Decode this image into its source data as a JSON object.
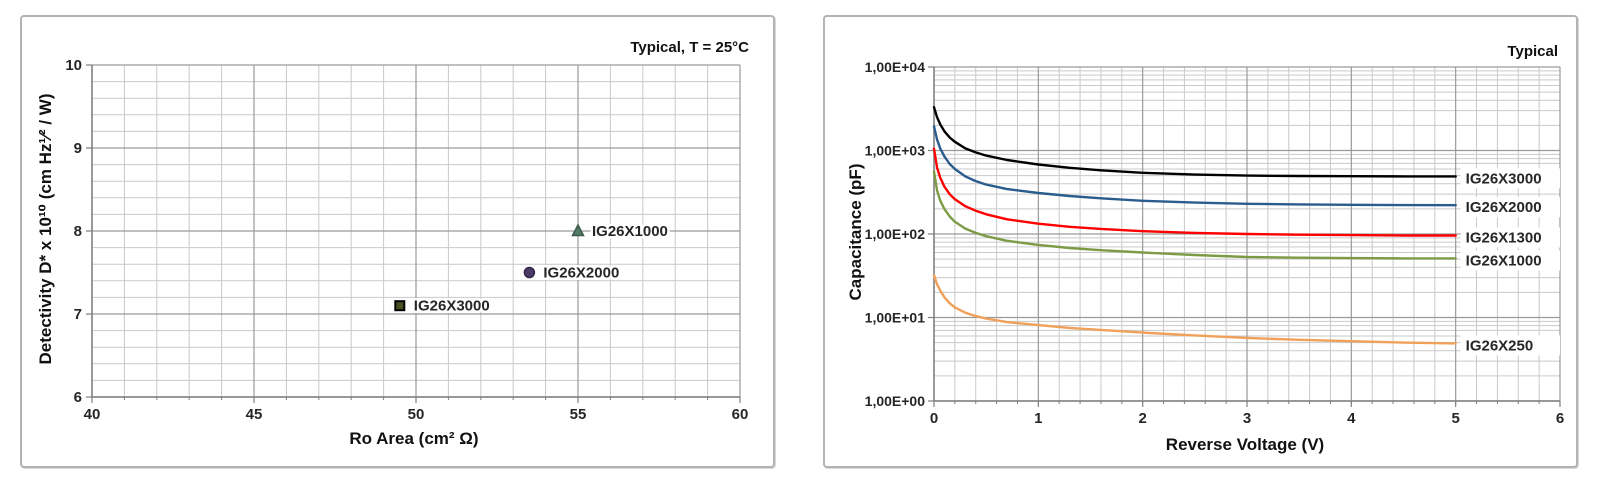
{
  "page": {
    "background": "#ffffff",
    "panel_border_color": "#b3b3b3"
  },
  "chart_data": [
    {
      "type": "scatter",
      "note": "Typical, T = 25°C",
      "xlabel": "Ro Area (cm² Ω)",
      "ylabel": "Detectivity D* x 10¹⁰  (cm Hz¹⁄² / W)",
      "x_axis": {
        "min": 40,
        "max": 60,
        "major_step": 5,
        "minor_step": 1,
        "tick_labels": [
          "40",
          "45",
          "50",
          "55",
          "60"
        ]
      },
      "y_axis": {
        "min": 6,
        "max": 10,
        "major_step": 1,
        "minor_step": 0.2,
        "tick_labels": [
          "6",
          "7",
          "8",
          "9",
          "10"
        ]
      },
      "grid": {
        "minor_color": "#c9c9c9",
        "major_color": "#9a9a9a",
        "axis_color": "#7f7f7f",
        "on": true
      },
      "points": [
        {
          "label": "IG26X3000",
          "x": 49.5,
          "y": 7.1,
          "marker": "square",
          "fill": "#44501e",
          "stroke": "#000000",
          "label_color": "#111111"
        },
        {
          "label": "IG26X2000",
          "x": 53.5,
          "y": 7.5,
          "marker": "circle",
          "fill": "#4a3a66",
          "stroke": "#33254a",
          "label_color": "#1f3864"
        },
        {
          "label": "IG26X1000",
          "x": 55,
          "y": 8,
          "marker": "triangle",
          "fill": "#527a66",
          "stroke": "#3c5a49",
          "label_color": "#7d9b44"
        }
      ]
    },
    {
      "type": "line",
      "note": "Typical",
      "xlabel": "Reverse Voltage (V)",
      "ylabel": "Capacitance (pF)",
      "x_axis": {
        "min": 0,
        "max": 6,
        "major_step": 1,
        "minor_step": 0.2,
        "tick_labels": [
          "0",
          "1",
          "2",
          "3",
          "4",
          "5",
          "6"
        ]
      },
      "y_axis": {
        "scale": "log",
        "min_exp": 0,
        "max_exp": 4,
        "tick_labels": [
          "1,00E+00",
          "1,00E+01",
          "1,00E+02",
          "1,00E+03",
          "1,00E+04"
        ]
      },
      "grid": {
        "minor_color": "#c9c9c9",
        "major_color": "#9a9a9a",
        "axis_color": "#7f7f7f",
        "on": true
      },
      "series": [
        {
          "name": "IG26X3000",
          "color": "#000000",
          "points": [
            [
              0,
              3300
            ],
            [
              0.03,
              2500
            ],
            [
              0.06,
              2050
            ],
            [
              0.1,
              1700
            ],
            [
              0.15,
              1430
            ],
            [
              0.2,
              1270
            ],
            [
              0.3,
              1060
            ],
            [
              0.4,
              950
            ],
            [
              0.5,
              870
            ],
            [
              0.7,
              770
            ],
            [
              1,
              680
            ],
            [
              1.3,
              620
            ],
            [
              1.6,
              580
            ],
            [
              2,
              540
            ],
            [
              2.5,
              515
            ],
            [
              3,
              500
            ],
            [
              3.5,
              495
            ],
            [
              4,
              492
            ],
            [
              4.5,
              490
            ],
            [
              5,
              490
            ]
          ]
        },
        {
          "name": "IG26X2000",
          "color": "#2b5c8e",
          "points": [
            [
              0,
              1950
            ],
            [
              0.03,
              1350
            ],
            [
              0.06,
              1050
            ],
            [
              0.1,
              850
            ],
            [
              0.15,
              690
            ],
            [
              0.2,
              600
            ],
            [
              0.3,
              490
            ],
            [
              0.4,
              430
            ],
            [
              0.5,
              390
            ],
            [
              0.7,
              345
            ],
            [
              1,
              310
            ],
            [
              1.3,
              285
            ],
            [
              1.6,
              268
            ],
            [
              2,
              250
            ],
            [
              2.5,
              238
            ],
            [
              3,
              230
            ],
            [
              3.5,
              226
            ],
            [
              4,
              224
            ],
            [
              4.5,
              222
            ],
            [
              5,
              221
            ]
          ]
        },
        {
          "name": "IG26X1300",
          "color": "#fe0000",
          "points": [
            [
              0,
              1050
            ],
            [
              0.03,
              620
            ],
            [
              0.06,
              470
            ],
            [
              0.1,
              370
            ],
            [
              0.15,
              300
            ],
            [
              0.2,
              260
            ],
            [
              0.3,
              215
            ],
            [
              0.4,
              190
            ],
            [
              0.5,
              172
            ],
            [
              0.7,
              150
            ],
            [
              1,
              133
            ],
            [
              1.3,
              122
            ],
            [
              1.6,
              115
            ],
            [
              2,
              108
            ],
            [
              2.5,
              103
            ],
            [
              3,
              100
            ],
            [
              3.5,
              98
            ],
            [
              4,
              97
            ],
            [
              4.5,
              96
            ],
            [
              5,
              96
            ]
          ]
        },
        {
          "name": "IG26X1000",
          "color": "#7d9b44",
          "points": [
            [
              0,
              560
            ],
            [
              0.03,
              330
            ],
            [
              0.06,
              250
            ],
            [
              0.1,
              200
            ],
            [
              0.15,
              162
            ],
            [
              0.2,
              140
            ],
            [
              0.3,
              116
            ],
            [
              0.4,
              103
            ],
            [
              0.5,
              94
            ],
            [
              0.7,
              83
            ],
            [
              1,
              74
            ],
            [
              1.3,
              68
            ],
            [
              1.6,
              64
            ],
            [
              2,
              60
            ],
            [
              2.5,
              56
            ],
            [
              3,
              53
            ],
            [
              3.5,
              52
            ],
            [
              4,
              51.5
            ],
            [
              4.5,
              51
            ],
            [
              5,
              51
            ]
          ]
        },
        {
          "name": "IG26X250",
          "color": "#f0a058",
          "points": [
            [
              0,
              32
            ],
            [
              0.03,
              25
            ],
            [
              0.06,
              21
            ],
            [
              0.1,
              17.5
            ],
            [
              0.15,
              14.8
            ],
            [
              0.2,
              13.2
            ],
            [
              0.3,
              11.4
            ],
            [
              0.4,
              10.4
            ],
            [
              0.5,
              9.7
            ],
            [
              0.7,
              8.8
            ],
            [
              1,
              8.1
            ],
            [
              1.3,
              7.5
            ],
            [
              1.6,
              7.1
            ],
            [
              2,
              6.6
            ],
            [
              2.5,
              6.1
            ],
            [
              3,
              5.7
            ],
            [
              3.5,
              5.4
            ],
            [
              4,
              5.2
            ],
            [
              4.5,
              5.0
            ],
            [
              5,
              4.9
            ]
          ]
        }
      ]
    }
  ]
}
